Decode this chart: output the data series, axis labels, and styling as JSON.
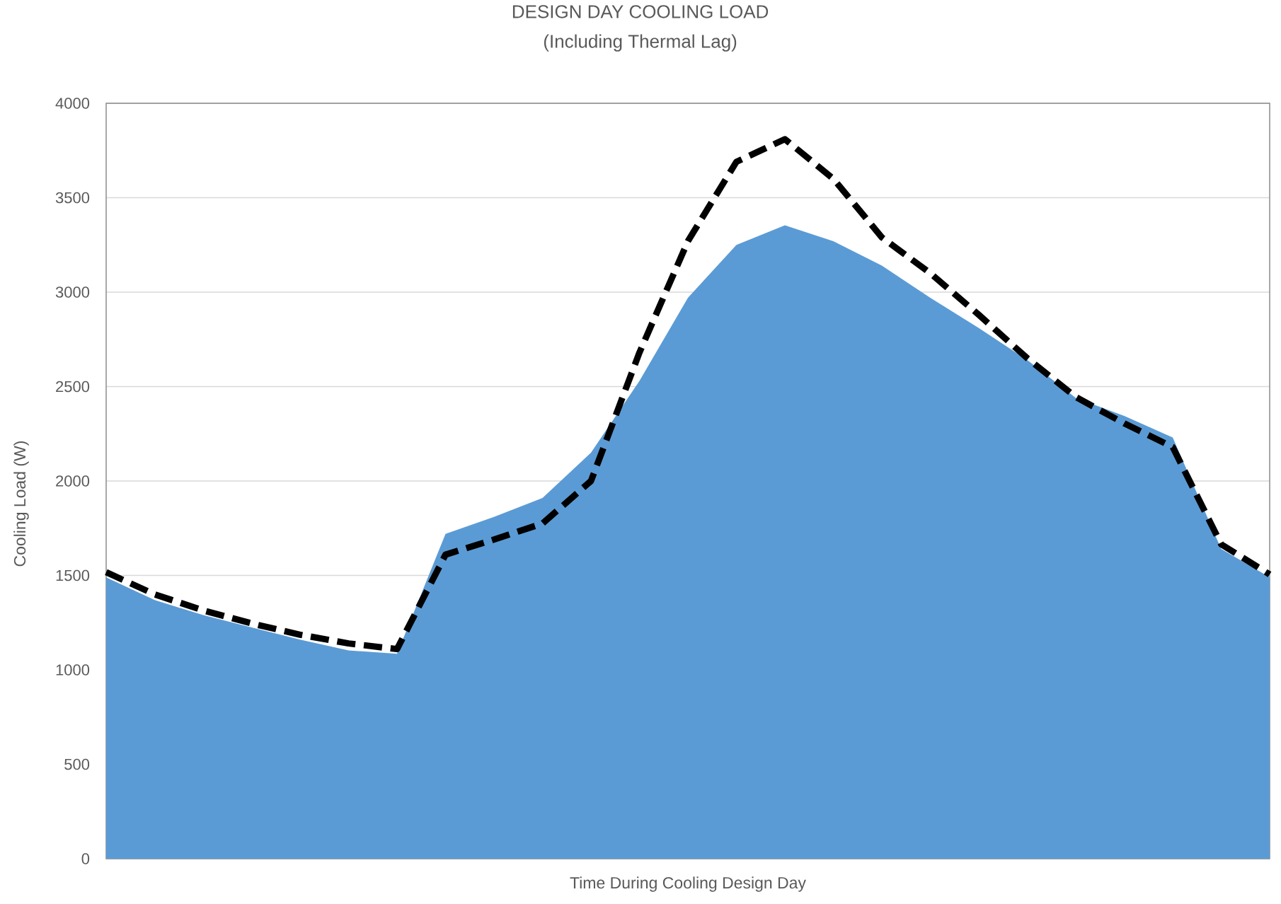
{
  "chart_data": {
    "type": "area",
    "title": "DESIGN DAY COOLING LOAD",
    "subtitle": "(Including Thermal Lag)",
    "xlabel": "Time During Cooling Design Day",
    "ylabel": "Cooling Load  (W)",
    "categories": [
      null,
      null,
      null,
      null,
      null,
      null,
      null,
      null,
      null,
      null,
      null,
      null,
      null,
      null,
      null,
      null,
      null,
      null,
      null,
      null,
      null,
      null,
      null,
      null,
      null
    ],
    "series": [
      {
        "color": "#5b9bd5",
        "values": [
          1490,
          1370,
          1290,
          1225,
          1160,
          1103,
          1085,
          1720,
          1810,
          1910,
          2150,
          2530,
          2970,
          3250,
          3354,
          3270,
          3140,
          2970,
          2810,
          2640,
          2440,
          2345,
          2230,
          1640,
          1490
        ]
      },
      {
        "type": "line",
        "color": "#000000",
        "line_style": "dashed",
        "marker": "none",
        "values": [
          1517,
          1400,
          1315,
          1246,
          1186,
          1140,
          1110,
          1610,
          1690,
          1775,
          2000,
          2680,
          3270,
          3690,
          3810,
          3600,
          3290,
          3100,
          2880,
          2650,
          2445,
          2305,
          2180,
          1665,
          1505
        ]
      }
    ],
    "ylim": [
      0,
      4000
    ],
    "yticks": [
      0,
      500,
      1000,
      1500,
      2000,
      2500,
      3000,
      3500,
      4000
    ],
    "grid": "y"
  }
}
